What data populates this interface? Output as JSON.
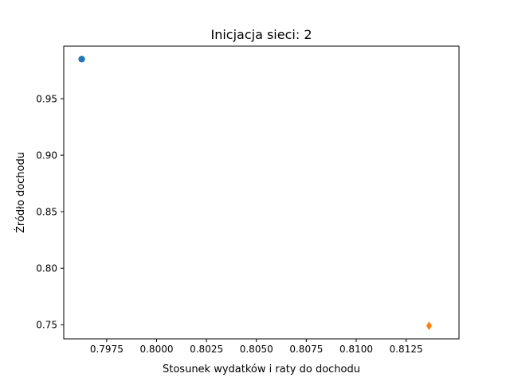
{
  "chart_data": {
    "type": "scatter",
    "title": "Inicjacja sieci: 2",
    "xlabel": "Stosunek wydatków i raty do dochodu",
    "ylabel": "Źródło dochodu",
    "xlim": [
      0.79535,
      0.81515
    ],
    "ylim": [
      0.7375,
      0.9965
    ],
    "x_ticks": [
      0.7975,
      0.8,
      0.8025,
      0.805,
      0.8075,
      0.81,
      0.8125
    ],
    "x_tick_labels": [
      "0.7975",
      "0.8000",
      "0.8025",
      "0.8050",
      "0.8075",
      "0.8100",
      "0.8125"
    ],
    "y_ticks": [
      0.75,
      0.8,
      0.85,
      0.9,
      0.95
    ],
    "y_tick_labels": [
      "0.75",
      "0.80",
      "0.85",
      "0.90",
      "0.95"
    ],
    "grid": false,
    "series": [
      {
        "marker": "circle",
        "color": "#1f77b4",
        "points": [
          {
            "x": 0.79625,
            "y": 0.985
          }
        ]
      },
      {
        "marker": "diamond",
        "color": "#ff7f0e",
        "points": [
          {
            "x": 0.81365,
            "y": 0.749
          }
        ]
      }
    ]
  }
}
